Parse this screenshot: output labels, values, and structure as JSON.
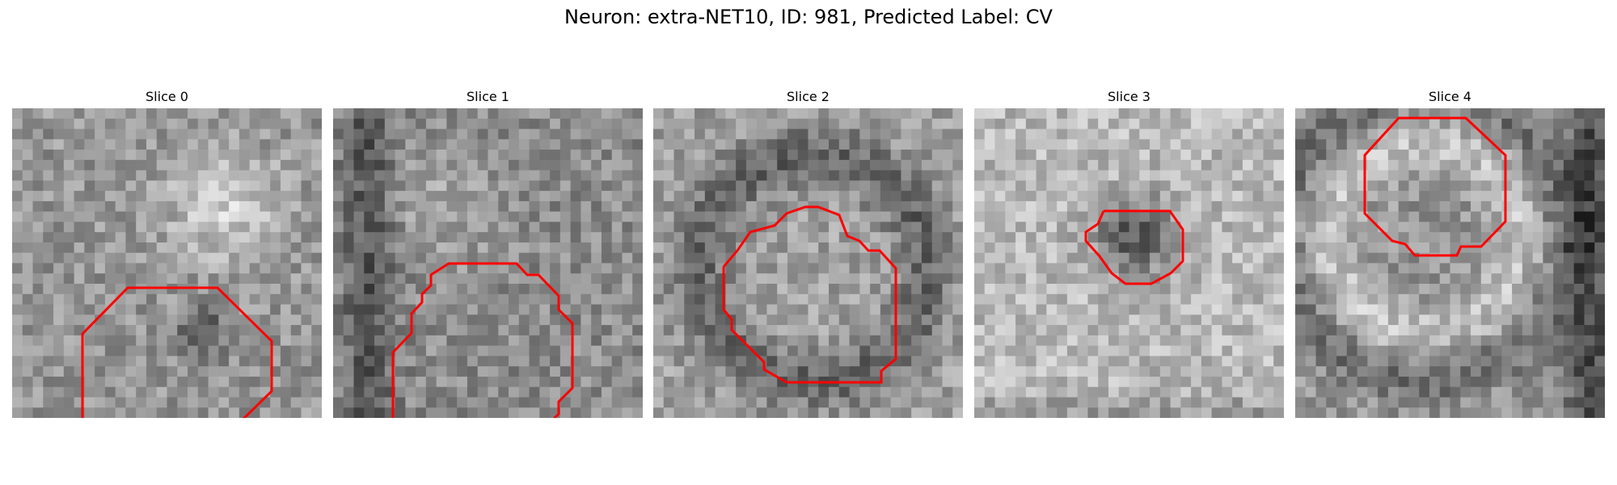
{
  "figure": {
    "title": "Neuron: extra-NET10, ID: 981, Predicted Label: CV"
  },
  "contour_color": "#ff0000",
  "panels": [
    {
      "title": "Slice 0"
    },
    {
      "title": "Slice 1"
    },
    {
      "title": "Slice 2"
    },
    {
      "title": "Slice 3"
    },
    {
      "title": "Slice 4"
    }
  ]
}
